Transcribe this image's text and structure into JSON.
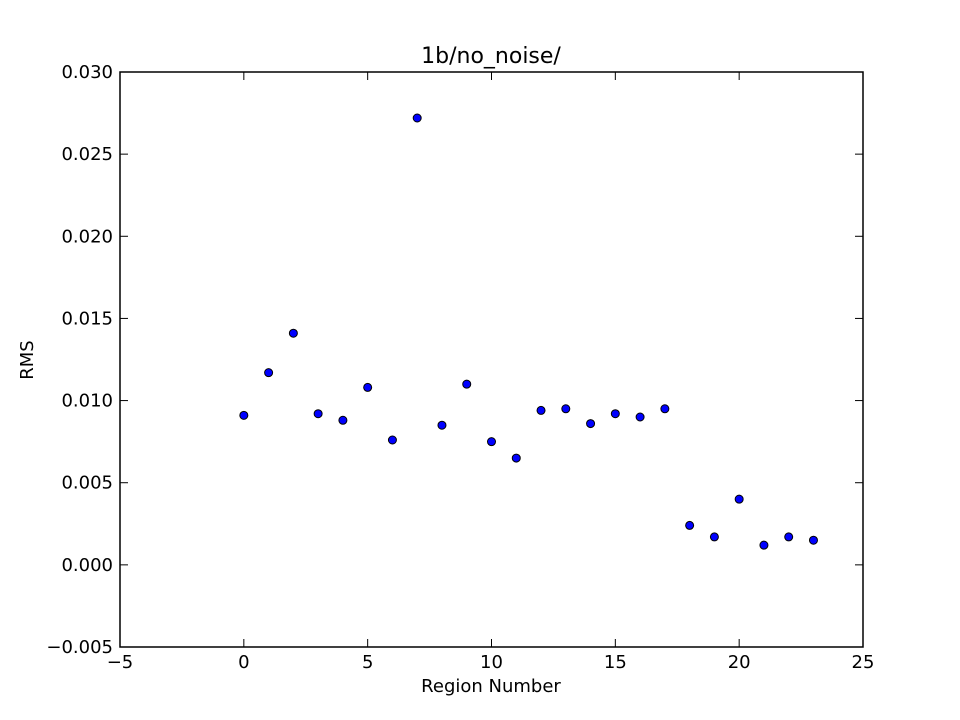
{
  "chart_data": {
    "type": "scatter",
    "title": "1b/no_noise/",
    "xlabel": "Region Number",
    "ylabel": "RMS",
    "xlim": [
      -5,
      25
    ],
    "ylim": [
      -0.005,
      0.03
    ],
    "xticks": [
      -5,
      0,
      5,
      10,
      15,
      20,
      25
    ],
    "xtick_labels": [
      "−5",
      "0",
      "5",
      "10",
      "15",
      "20",
      "25"
    ],
    "yticks": [
      -0.005,
      0,
      0.005,
      0.01,
      0.015,
      0.02,
      0.025,
      0.03
    ],
    "ytick_labels": [
      "−0.005",
      "0.000",
      "0.005",
      "0.010",
      "0.015",
      "0.020",
      "0.025",
      "0.030"
    ],
    "grid": false,
    "marker_color": "#0000ff",
    "marker_edge_color": "#000000",
    "series": [
      {
        "x": [
          0,
          1,
          2,
          3,
          4,
          5,
          6,
          7,
          8,
          9,
          10,
          11,
          12,
          13,
          14,
          15,
          16,
          17,
          18,
          19,
          20,
          21,
          22,
          23
        ],
        "values": [
          0.0091,
          0.0117,
          0.0141,
          0.0092,
          0.0088,
          0.0108,
          0.0076,
          0.0272,
          0.0085,
          0.011,
          0.0075,
          0.0065,
          0.0094,
          0.0095,
          0.0086,
          0.0092,
          0.009,
          0.0095,
          0.0024,
          0.0017,
          0.004,
          0.0012,
          0.0017,
          0.0015
        ]
      }
    ]
  }
}
